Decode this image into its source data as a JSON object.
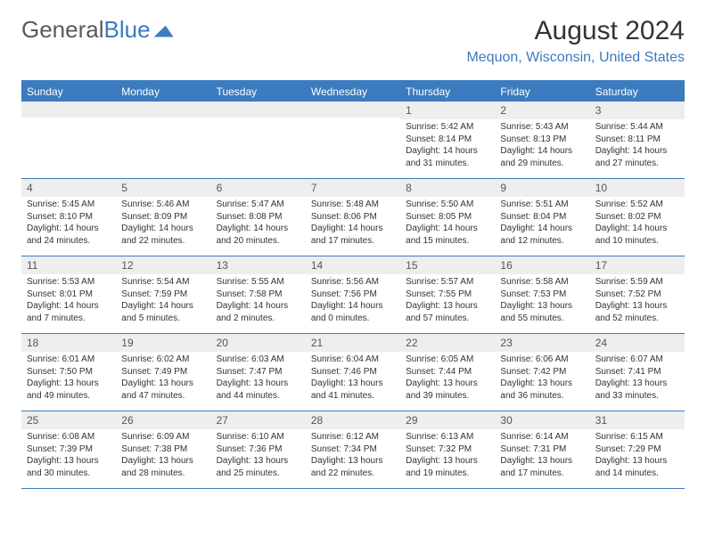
{
  "logo": {
    "part1": "General",
    "part2": "Blue"
  },
  "title": "August 2024",
  "location": "Mequon, Wisconsin, United States",
  "colors": {
    "accent": "#3b7bbf",
    "stripe": "#eeeeee",
    "text": "#333333",
    "logo_gray": "#5a5a5a",
    "bg": "#ffffff"
  },
  "weekdays": [
    "Sunday",
    "Monday",
    "Tuesday",
    "Wednesday",
    "Thursday",
    "Friday",
    "Saturday"
  ],
  "weeks": [
    [
      {
        "day": "",
        "sunrise": "",
        "sunset": "",
        "daylight": ""
      },
      {
        "day": "",
        "sunrise": "",
        "sunset": "",
        "daylight": ""
      },
      {
        "day": "",
        "sunrise": "",
        "sunset": "",
        "daylight": ""
      },
      {
        "day": "",
        "sunrise": "",
        "sunset": "",
        "daylight": ""
      },
      {
        "day": "1",
        "sunrise": "Sunrise: 5:42 AM",
        "sunset": "Sunset: 8:14 PM",
        "daylight": "Daylight: 14 hours and 31 minutes."
      },
      {
        "day": "2",
        "sunrise": "Sunrise: 5:43 AM",
        "sunset": "Sunset: 8:13 PM",
        "daylight": "Daylight: 14 hours and 29 minutes."
      },
      {
        "day": "3",
        "sunrise": "Sunrise: 5:44 AM",
        "sunset": "Sunset: 8:11 PM",
        "daylight": "Daylight: 14 hours and 27 minutes."
      }
    ],
    [
      {
        "day": "4",
        "sunrise": "Sunrise: 5:45 AM",
        "sunset": "Sunset: 8:10 PM",
        "daylight": "Daylight: 14 hours and 24 minutes."
      },
      {
        "day": "5",
        "sunrise": "Sunrise: 5:46 AM",
        "sunset": "Sunset: 8:09 PM",
        "daylight": "Daylight: 14 hours and 22 minutes."
      },
      {
        "day": "6",
        "sunrise": "Sunrise: 5:47 AM",
        "sunset": "Sunset: 8:08 PM",
        "daylight": "Daylight: 14 hours and 20 minutes."
      },
      {
        "day": "7",
        "sunrise": "Sunrise: 5:48 AM",
        "sunset": "Sunset: 8:06 PM",
        "daylight": "Daylight: 14 hours and 17 minutes."
      },
      {
        "day": "8",
        "sunrise": "Sunrise: 5:50 AM",
        "sunset": "Sunset: 8:05 PM",
        "daylight": "Daylight: 14 hours and 15 minutes."
      },
      {
        "day": "9",
        "sunrise": "Sunrise: 5:51 AM",
        "sunset": "Sunset: 8:04 PM",
        "daylight": "Daylight: 14 hours and 12 minutes."
      },
      {
        "day": "10",
        "sunrise": "Sunrise: 5:52 AM",
        "sunset": "Sunset: 8:02 PM",
        "daylight": "Daylight: 14 hours and 10 minutes."
      }
    ],
    [
      {
        "day": "11",
        "sunrise": "Sunrise: 5:53 AM",
        "sunset": "Sunset: 8:01 PM",
        "daylight": "Daylight: 14 hours and 7 minutes."
      },
      {
        "day": "12",
        "sunrise": "Sunrise: 5:54 AM",
        "sunset": "Sunset: 7:59 PM",
        "daylight": "Daylight: 14 hours and 5 minutes."
      },
      {
        "day": "13",
        "sunrise": "Sunrise: 5:55 AM",
        "sunset": "Sunset: 7:58 PM",
        "daylight": "Daylight: 14 hours and 2 minutes."
      },
      {
        "day": "14",
        "sunrise": "Sunrise: 5:56 AM",
        "sunset": "Sunset: 7:56 PM",
        "daylight": "Daylight: 14 hours and 0 minutes."
      },
      {
        "day": "15",
        "sunrise": "Sunrise: 5:57 AM",
        "sunset": "Sunset: 7:55 PM",
        "daylight": "Daylight: 13 hours and 57 minutes."
      },
      {
        "day": "16",
        "sunrise": "Sunrise: 5:58 AM",
        "sunset": "Sunset: 7:53 PM",
        "daylight": "Daylight: 13 hours and 55 minutes."
      },
      {
        "day": "17",
        "sunrise": "Sunrise: 5:59 AM",
        "sunset": "Sunset: 7:52 PM",
        "daylight": "Daylight: 13 hours and 52 minutes."
      }
    ],
    [
      {
        "day": "18",
        "sunrise": "Sunrise: 6:01 AM",
        "sunset": "Sunset: 7:50 PM",
        "daylight": "Daylight: 13 hours and 49 minutes."
      },
      {
        "day": "19",
        "sunrise": "Sunrise: 6:02 AM",
        "sunset": "Sunset: 7:49 PM",
        "daylight": "Daylight: 13 hours and 47 minutes."
      },
      {
        "day": "20",
        "sunrise": "Sunrise: 6:03 AM",
        "sunset": "Sunset: 7:47 PM",
        "daylight": "Daylight: 13 hours and 44 minutes."
      },
      {
        "day": "21",
        "sunrise": "Sunrise: 6:04 AM",
        "sunset": "Sunset: 7:46 PM",
        "daylight": "Daylight: 13 hours and 41 minutes."
      },
      {
        "day": "22",
        "sunrise": "Sunrise: 6:05 AM",
        "sunset": "Sunset: 7:44 PM",
        "daylight": "Daylight: 13 hours and 39 minutes."
      },
      {
        "day": "23",
        "sunrise": "Sunrise: 6:06 AM",
        "sunset": "Sunset: 7:42 PM",
        "daylight": "Daylight: 13 hours and 36 minutes."
      },
      {
        "day": "24",
        "sunrise": "Sunrise: 6:07 AM",
        "sunset": "Sunset: 7:41 PM",
        "daylight": "Daylight: 13 hours and 33 minutes."
      }
    ],
    [
      {
        "day": "25",
        "sunrise": "Sunrise: 6:08 AM",
        "sunset": "Sunset: 7:39 PM",
        "daylight": "Daylight: 13 hours and 30 minutes."
      },
      {
        "day": "26",
        "sunrise": "Sunrise: 6:09 AM",
        "sunset": "Sunset: 7:38 PM",
        "daylight": "Daylight: 13 hours and 28 minutes."
      },
      {
        "day": "27",
        "sunrise": "Sunrise: 6:10 AM",
        "sunset": "Sunset: 7:36 PM",
        "daylight": "Daylight: 13 hours and 25 minutes."
      },
      {
        "day": "28",
        "sunrise": "Sunrise: 6:12 AM",
        "sunset": "Sunset: 7:34 PM",
        "daylight": "Daylight: 13 hours and 22 minutes."
      },
      {
        "day": "29",
        "sunrise": "Sunrise: 6:13 AM",
        "sunset": "Sunset: 7:32 PM",
        "daylight": "Daylight: 13 hours and 19 minutes."
      },
      {
        "day": "30",
        "sunrise": "Sunrise: 6:14 AM",
        "sunset": "Sunset: 7:31 PM",
        "daylight": "Daylight: 13 hours and 17 minutes."
      },
      {
        "day": "31",
        "sunrise": "Sunrise: 6:15 AM",
        "sunset": "Sunset: 7:29 PM",
        "daylight": "Daylight: 13 hours and 14 minutes."
      }
    ]
  ]
}
